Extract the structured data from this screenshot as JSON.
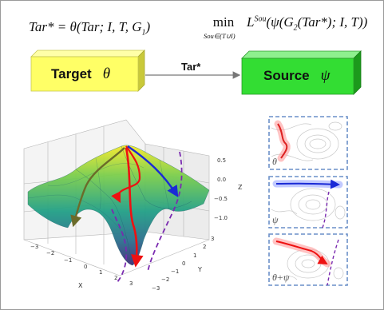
{
  "formula_left": {
    "lhs": "Tar* = θ(Tar; I, T, G",
    "sub": "1",
    "tail": ")"
  },
  "formula_right": {
    "min": "min",
    "min_sub": "Sou∈(T∪I)",
    "L": "L",
    "L_sup": "Sou",
    "body_a": "(ψ(G",
    "body_sub": "2",
    "body_b": "(Tar*); I, T))"
  },
  "target_box": {
    "label": "Target",
    "symbol": "θ",
    "color": "#ffff66"
  },
  "source_box": {
    "label": "Source",
    "symbol": "ψ",
    "color": "#33dd33"
  },
  "arrow_label": "Tar*",
  "plot3d": {
    "z_ticks": [
      "0.5",
      "0.0",
      "−0.5",
      "−1.0"
    ],
    "z_label": "Z",
    "x_ticks": [
      "−3",
      "−2",
      "−1",
      "0",
      "1",
      "2",
      "3"
    ],
    "x_label": "X",
    "y_ticks": [
      "−3",
      "−2",
      "−1",
      "0",
      "1",
      "2",
      "3"
    ],
    "y_label": "Y"
  },
  "panels": [
    {
      "label": "θ",
      "path_color": "#dd2222"
    },
    {
      "label": "ψ",
      "path_color": "#1a2ad6"
    },
    {
      "label": "θ+ψ",
      "path_color": "#ee1111"
    }
  ]
}
